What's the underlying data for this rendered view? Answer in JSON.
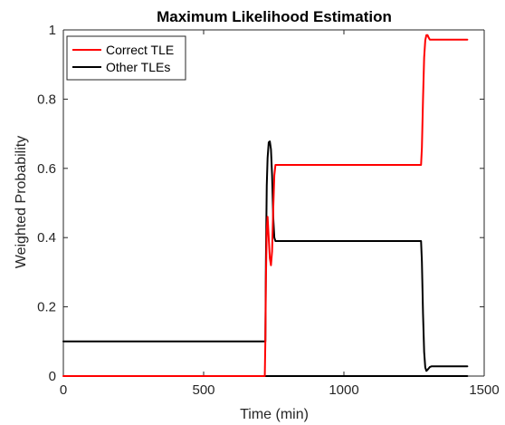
{
  "chart_data": {
    "type": "line",
    "title": "Maximum Likelihood Estimation",
    "xlabel": "Time (min)",
    "ylabel": "Weighted Probability",
    "xlim": [
      0,
      1500
    ],
    "ylim": [
      0,
      1
    ],
    "xticks": [
      0,
      500,
      1000,
      1500
    ],
    "yticks": [
      0,
      0.2,
      0.4,
      0.6,
      0.8,
      1
    ],
    "xtick_labels": [
      "0",
      "500",
      "1000",
      "1500"
    ],
    "ytick_labels": [
      "0",
      "0.2",
      "0.4",
      "0.6",
      "0.8",
      "1"
    ],
    "grid": false,
    "legend_position": "top-left",
    "series": [
      {
        "name": "Correct TLE",
        "color": "#ff0000",
        "x": [
          0,
          718,
          720,
          722,
          725,
          728,
          732,
          736,
          740,
          744,
          748,
          752,
          756,
          760,
          800,
          1000,
          1200,
          1275,
          1278,
          1282,
          1286,
          1290,
          1294,
          1298,
          1302,
          1306,
          1312,
          1320,
          1440
        ],
        "y": [
          0,
          0,
          0.1,
          0.28,
          0.42,
          0.46,
          0.4,
          0.34,
          0.32,
          0.36,
          0.48,
          0.58,
          0.61,
          0.61,
          0.61,
          0.61,
          0.61,
          0.61,
          0.66,
          0.8,
          0.92,
          0.97,
          0.985,
          0.985,
          0.978,
          0.972,
          0.972,
          0.972,
          0.972
        ]
      },
      {
        "name": "Other TLEs",
        "color": "#000000",
        "x": [
          0,
          718,
          720,
          722,
          725,
          728,
          732,
          736,
          740,
          744,
          748,
          752,
          756,
          760,
          800,
          1000,
          1200,
          1275,
          1278,
          1282,
          1286,
          1290,
          1294,
          1298,
          1302,
          1306,
          1312,
          1320,
          1440
        ],
        "y": [
          0.1,
          0.1,
          0.1,
          0.33,
          0.55,
          0.63,
          0.675,
          0.678,
          0.655,
          0.58,
          0.46,
          0.4,
          0.39,
          0.39,
          0.39,
          0.39,
          0.39,
          0.39,
          0.33,
          0.18,
          0.07,
          0.025,
          0.015,
          0.018,
          0.022,
          0.026,
          0.028,
          0.028,
          0.028
        ]
      },
      {
        "name": "",
        "color": "#000000",
        "x": [
          718,
          722,
          728,
          736,
          744,
          752,
          760,
          1000,
          1440
        ],
        "y": [
          0,
          0,
          0,
          0,
          0,
          0,
          0,
          0,
          0
        ]
      }
    ]
  }
}
